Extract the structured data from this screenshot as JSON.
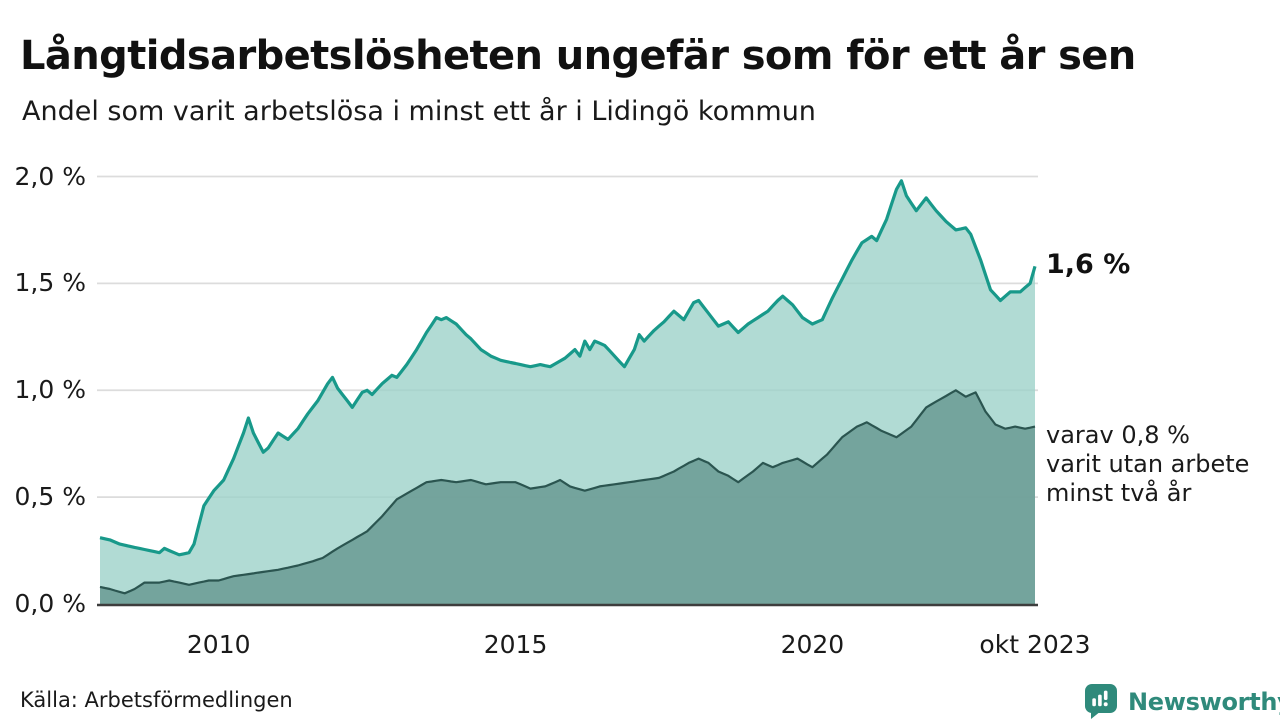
{
  "header": {
    "title": "Långtidsarbetslösheten ungefär som för ett år sen",
    "subtitle": "Andel som varit arbetslösa i minst ett år i Lidingö kommun"
  },
  "footer": {
    "source": "Källa: Arbetsförmedlingen",
    "brand": {
      "name": "Newsworthy",
      "color": "#2f8a7b",
      "icon": "newsworthy-speech-bubble-bars-icon"
    }
  },
  "chart_data": {
    "type": "area",
    "title": "Långtidsarbetslösheten ungefär som för ett år sen",
    "subtitle": "Andel som varit arbetslösa i minst ett år i Lidingö kommun",
    "unit": "%",
    "x_start": "2008-01",
    "x_end": "2023-10",
    "ylim": [
      0,
      2.0
    ],
    "grid": true,
    "colors": {
      "gridline": "#dcdcdc",
      "baseline": "#3d3d3d",
      "series1_line": "#18998a",
      "series1_fill": "#9ed2c9",
      "series2_line": "#2b5550",
      "series2_fill": "#6a9a93"
    },
    "y_ticks": [
      {
        "label": "0,0 %",
        "value": 0.0
      },
      {
        "label": "0,5 %",
        "value": 0.5
      },
      {
        "label": "1,0 %",
        "value": 1.0
      },
      {
        "label": "1,5 %",
        "value": 1.5
      },
      {
        "label": "2,0 %",
        "value": 2.0
      }
    ],
    "x_ticks": [
      {
        "label": "2010",
        "value": "2010-01"
      },
      {
        "label": "2015",
        "value": "2015-01"
      },
      {
        "label": "2020",
        "value": "2020-01"
      },
      {
        "label": "okt 2023",
        "value": "2023-10"
      }
    ],
    "series": [
      {
        "name": "Andel som varit arbetslösa i minst ett år",
        "end_label": "1,6 %",
        "latest_value": 1.58,
        "points": [
          [
            "2008-01",
            0.31
          ],
          [
            "2008-03",
            0.3
          ],
          [
            "2008-05",
            0.28
          ],
          [
            "2008-07",
            0.27
          ],
          [
            "2008-09",
            0.26
          ],
          [
            "2008-11",
            0.25
          ],
          [
            "2009-01",
            0.24
          ],
          [
            "2009-02",
            0.26
          ],
          [
            "2009-04",
            0.24
          ],
          [
            "2009-05",
            0.23
          ],
          [
            "2009-07",
            0.24
          ],
          [
            "2009-08",
            0.28
          ],
          [
            "2009-10",
            0.46
          ],
          [
            "2009-12",
            0.53
          ],
          [
            "2010-02",
            0.58
          ],
          [
            "2010-04",
            0.68
          ],
          [
            "2010-06",
            0.8
          ],
          [
            "2010-07",
            0.87
          ],
          [
            "2010-08",
            0.8
          ],
          [
            "2010-10",
            0.71
          ],
          [
            "2010-11",
            0.73
          ],
          [
            "2011-01",
            0.8
          ],
          [
            "2011-03",
            0.77
          ],
          [
            "2011-05",
            0.82
          ],
          [
            "2011-07",
            0.89
          ],
          [
            "2011-09",
            0.95
          ],
          [
            "2011-11",
            1.03
          ],
          [
            "2011-12",
            1.06
          ],
          [
            "2012-01",
            1.01
          ],
          [
            "2012-03",
            0.95
          ],
          [
            "2012-04",
            0.92
          ],
          [
            "2012-06",
            0.99
          ],
          [
            "2012-07",
            1.0
          ],
          [
            "2012-08",
            0.98
          ],
          [
            "2012-10",
            1.03
          ],
          [
            "2012-12",
            1.07
          ],
          [
            "2013-01",
            1.06
          ],
          [
            "2013-03",
            1.12
          ],
          [
            "2013-05",
            1.19
          ],
          [
            "2013-07",
            1.27
          ],
          [
            "2013-09",
            1.34
          ],
          [
            "2013-10",
            1.33
          ],
          [
            "2013-11",
            1.34
          ],
          [
            "2014-01",
            1.31
          ],
          [
            "2014-03",
            1.26
          ],
          [
            "2014-04",
            1.24
          ],
          [
            "2014-06",
            1.19
          ],
          [
            "2014-08",
            1.16
          ],
          [
            "2014-10",
            1.14
          ],
          [
            "2014-12",
            1.13
          ],
          [
            "2015-02",
            1.12
          ],
          [
            "2015-04",
            1.11
          ],
          [
            "2015-06",
            1.12
          ],
          [
            "2015-08",
            1.11
          ],
          [
            "2015-11",
            1.15
          ],
          [
            "2016-01",
            1.19
          ],
          [
            "2016-02",
            1.16
          ],
          [
            "2016-03",
            1.23
          ],
          [
            "2016-04",
            1.19
          ],
          [
            "2016-05",
            1.23
          ],
          [
            "2016-07",
            1.21
          ],
          [
            "2016-09",
            1.16
          ],
          [
            "2016-11",
            1.11
          ],
          [
            "2017-01",
            1.19
          ],
          [
            "2017-02",
            1.26
          ],
          [
            "2017-03",
            1.23
          ],
          [
            "2017-05",
            1.28
          ],
          [
            "2017-07",
            1.32
          ],
          [
            "2017-09",
            1.37
          ],
          [
            "2017-11",
            1.33
          ],
          [
            "2018-01",
            1.41
          ],
          [
            "2018-02",
            1.42
          ],
          [
            "2018-04",
            1.36
          ],
          [
            "2018-06",
            1.3
          ],
          [
            "2018-08",
            1.32
          ],
          [
            "2018-10",
            1.27
          ],
          [
            "2018-12",
            1.31
          ],
          [
            "2019-02",
            1.34
          ],
          [
            "2019-04",
            1.37
          ],
          [
            "2019-06",
            1.42
          ],
          [
            "2019-07",
            1.44
          ],
          [
            "2019-09",
            1.4
          ],
          [
            "2019-11",
            1.34
          ],
          [
            "2020-01",
            1.31
          ],
          [
            "2020-03",
            1.33
          ],
          [
            "2020-05",
            1.43
          ],
          [
            "2020-07",
            1.52
          ],
          [
            "2020-09",
            1.61
          ],
          [
            "2020-11",
            1.69
          ],
          [
            "2021-01",
            1.72
          ],
          [
            "2021-02",
            1.7
          ],
          [
            "2021-04",
            1.8
          ],
          [
            "2021-06",
            1.94
          ],
          [
            "2021-07",
            1.98
          ],
          [
            "2021-08",
            1.91
          ],
          [
            "2021-10",
            1.84
          ],
          [
            "2021-12",
            1.9
          ],
          [
            "2022-02",
            1.84
          ],
          [
            "2022-04",
            1.79
          ],
          [
            "2022-06",
            1.75
          ],
          [
            "2022-08",
            1.76
          ],
          [
            "2022-09",
            1.73
          ],
          [
            "2022-11",
            1.61
          ],
          [
            "2023-01",
            1.47
          ],
          [
            "2023-03",
            1.42
          ],
          [
            "2023-05",
            1.46
          ],
          [
            "2023-07",
            1.46
          ],
          [
            "2023-09",
            1.5
          ],
          [
            "2023-10",
            1.58
          ]
        ]
      },
      {
        "name": "varav utan arbete minst två år",
        "end_label_lines": [
          "varav 0,8 %",
          "varit utan arbete",
          "minst två år"
        ],
        "latest_value": 0.83,
        "points": [
          [
            "2008-01",
            0.08
          ],
          [
            "2008-03",
            0.07
          ],
          [
            "2008-06",
            0.05
          ],
          [
            "2008-08",
            0.07
          ],
          [
            "2008-10",
            0.1
          ],
          [
            "2009-01",
            0.1
          ],
          [
            "2009-03",
            0.11
          ],
          [
            "2009-05",
            0.1
          ],
          [
            "2009-07",
            0.09
          ],
          [
            "2009-09",
            0.1
          ],
          [
            "2009-11",
            0.11
          ],
          [
            "2010-01",
            0.11
          ],
          [
            "2010-04",
            0.13
          ],
          [
            "2010-07",
            0.14
          ],
          [
            "2010-10",
            0.15
          ],
          [
            "2011-01",
            0.16
          ],
          [
            "2011-05",
            0.18
          ],
          [
            "2011-08",
            0.2
          ],
          [
            "2011-10",
            0.215
          ],
          [
            "2012-01",
            0.26
          ],
          [
            "2012-04",
            0.3
          ],
          [
            "2012-07",
            0.34
          ],
          [
            "2012-10",
            0.41
          ],
          [
            "2013-01",
            0.49
          ],
          [
            "2013-04",
            0.53
          ],
          [
            "2013-07",
            0.57
          ],
          [
            "2013-10",
            0.58
          ],
          [
            "2014-01",
            0.57
          ],
          [
            "2014-04",
            0.58
          ],
          [
            "2014-07",
            0.56
          ],
          [
            "2014-10",
            0.57
          ],
          [
            "2015-01",
            0.57
          ],
          [
            "2015-04",
            0.54
          ],
          [
            "2015-07",
            0.55
          ],
          [
            "2015-10",
            0.58
          ],
          [
            "2015-12",
            0.55
          ],
          [
            "2016-03",
            0.53
          ],
          [
            "2016-06",
            0.55
          ],
          [
            "2016-09",
            0.56
          ],
          [
            "2016-12",
            0.57
          ],
          [
            "2017-03",
            0.58
          ],
          [
            "2017-06",
            0.59
          ],
          [
            "2017-09",
            0.62
          ],
          [
            "2017-12",
            0.66
          ],
          [
            "2018-02",
            0.68
          ],
          [
            "2018-04",
            0.66
          ],
          [
            "2018-06",
            0.62
          ],
          [
            "2018-08",
            0.6
          ],
          [
            "2018-10",
            0.57
          ],
          [
            "2019-01",
            0.62
          ],
          [
            "2019-03",
            0.66
          ],
          [
            "2019-05",
            0.64
          ],
          [
            "2019-07",
            0.66
          ],
          [
            "2019-10",
            0.68
          ],
          [
            "2020-01",
            0.64
          ],
          [
            "2020-04",
            0.7
          ],
          [
            "2020-07",
            0.78
          ],
          [
            "2020-10",
            0.83
          ],
          [
            "2020-12",
            0.85
          ],
          [
            "2021-03",
            0.81
          ],
          [
            "2021-06",
            0.78
          ],
          [
            "2021-09",
            0.83
          ],
          [
            "2021-12",
            0.92
          ],
          [
            "2022-03",
            0.96
          ],
          [
            "2022-06",
            1.0
          ],
          [
            "2022-08",
            0.97
          ],
          [
            "2022-10",
            0.99
          ],
          [
            "2022-12",
            0.9
          ],
          [
            "2023-02",
            0.84
          ],
          [
            "2023-04",
            0.82
          ],
          [
            "2023-06",
            0.83
          ],
          [
            "2023-08",
            0.82
          ],
          [
            "2023-10",
            0.83
          ]
        ]
      }
    ]
  }
}
